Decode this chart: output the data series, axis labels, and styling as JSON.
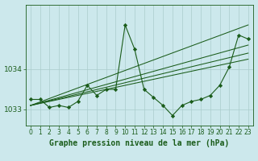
{
  "title": "Graphe pression niveau de la mer (hPa)",
  "bg_color": "#cce8ec",
  "grid_color": "#aacccc",
  "line_color": "#1a5c1a",
  "marker_color": "#1a5c1a",
  "xlim": [
    -0.5,
    23.5
  ],
  "ylim": [
    1032.6,
    1035.6
  ],
  "yticks": [
    1033,
    1034
  ],
  "xticks": [
    0,
    1,
    2,
    3,
    4,
    5,
    6,
    7,
    8,
    9,
    10,
    11,
    12,
    13,
    14,
    15,
    16,
    17,
    18,
    19,
    20,
    21,
    22,
    23
  ],
  "lines": [
    {
      "x": [
        0,
        1,
        2,
        3,
        4,
        5,
        6,
        7,
        8,
        9,
        10,
        11,
        12,
        13,
        14,
        15,
        16,
        17,
        18,
        19,
        20,
        21,
        22,
        23
      ],
      "y": [
        1033.25,
        1033.25,
        1033.05,
        1033.1,
        1033.05,
        1033.2,
        1033.6,
        1033.35,
        1033.5,
        1033.5,
        1035.1,
        1034.5,
        1033.5,
        1033.3,
        1033.1,
        1032.85,
        1033.1,
        1033.2,
        1033.25,
        1033.35,
        1033.6,
        1034.05,
        1034.85,
        1034.75
      ],
      "has_markers": true
    },
    {
      "x": [
        0,
        23
      ],
      "y": [
        1033.1,
        1035.1
      ],
      "has_markers": false
    },
    {
      "x": [
        0,
        23
      ],
      "y": [
        1033.1,
        1034.6
      ],
      "has_markers": false
    },
    {
      "x": [
        0,
        23
      ],
      "y": [
        1033.1,
        1034.4
      ],
      "has_markers": false
    },
    {
      "x": [
        0,
        23
      ],
      "y": [
        1033.1,
        1034.25
      ],
      "has_markers": false
    }
  ],
  "tick_fontsize": 5.5,
  "title_fontsize": 7.0,
  "ylabel_fontsize": 6.5
}
